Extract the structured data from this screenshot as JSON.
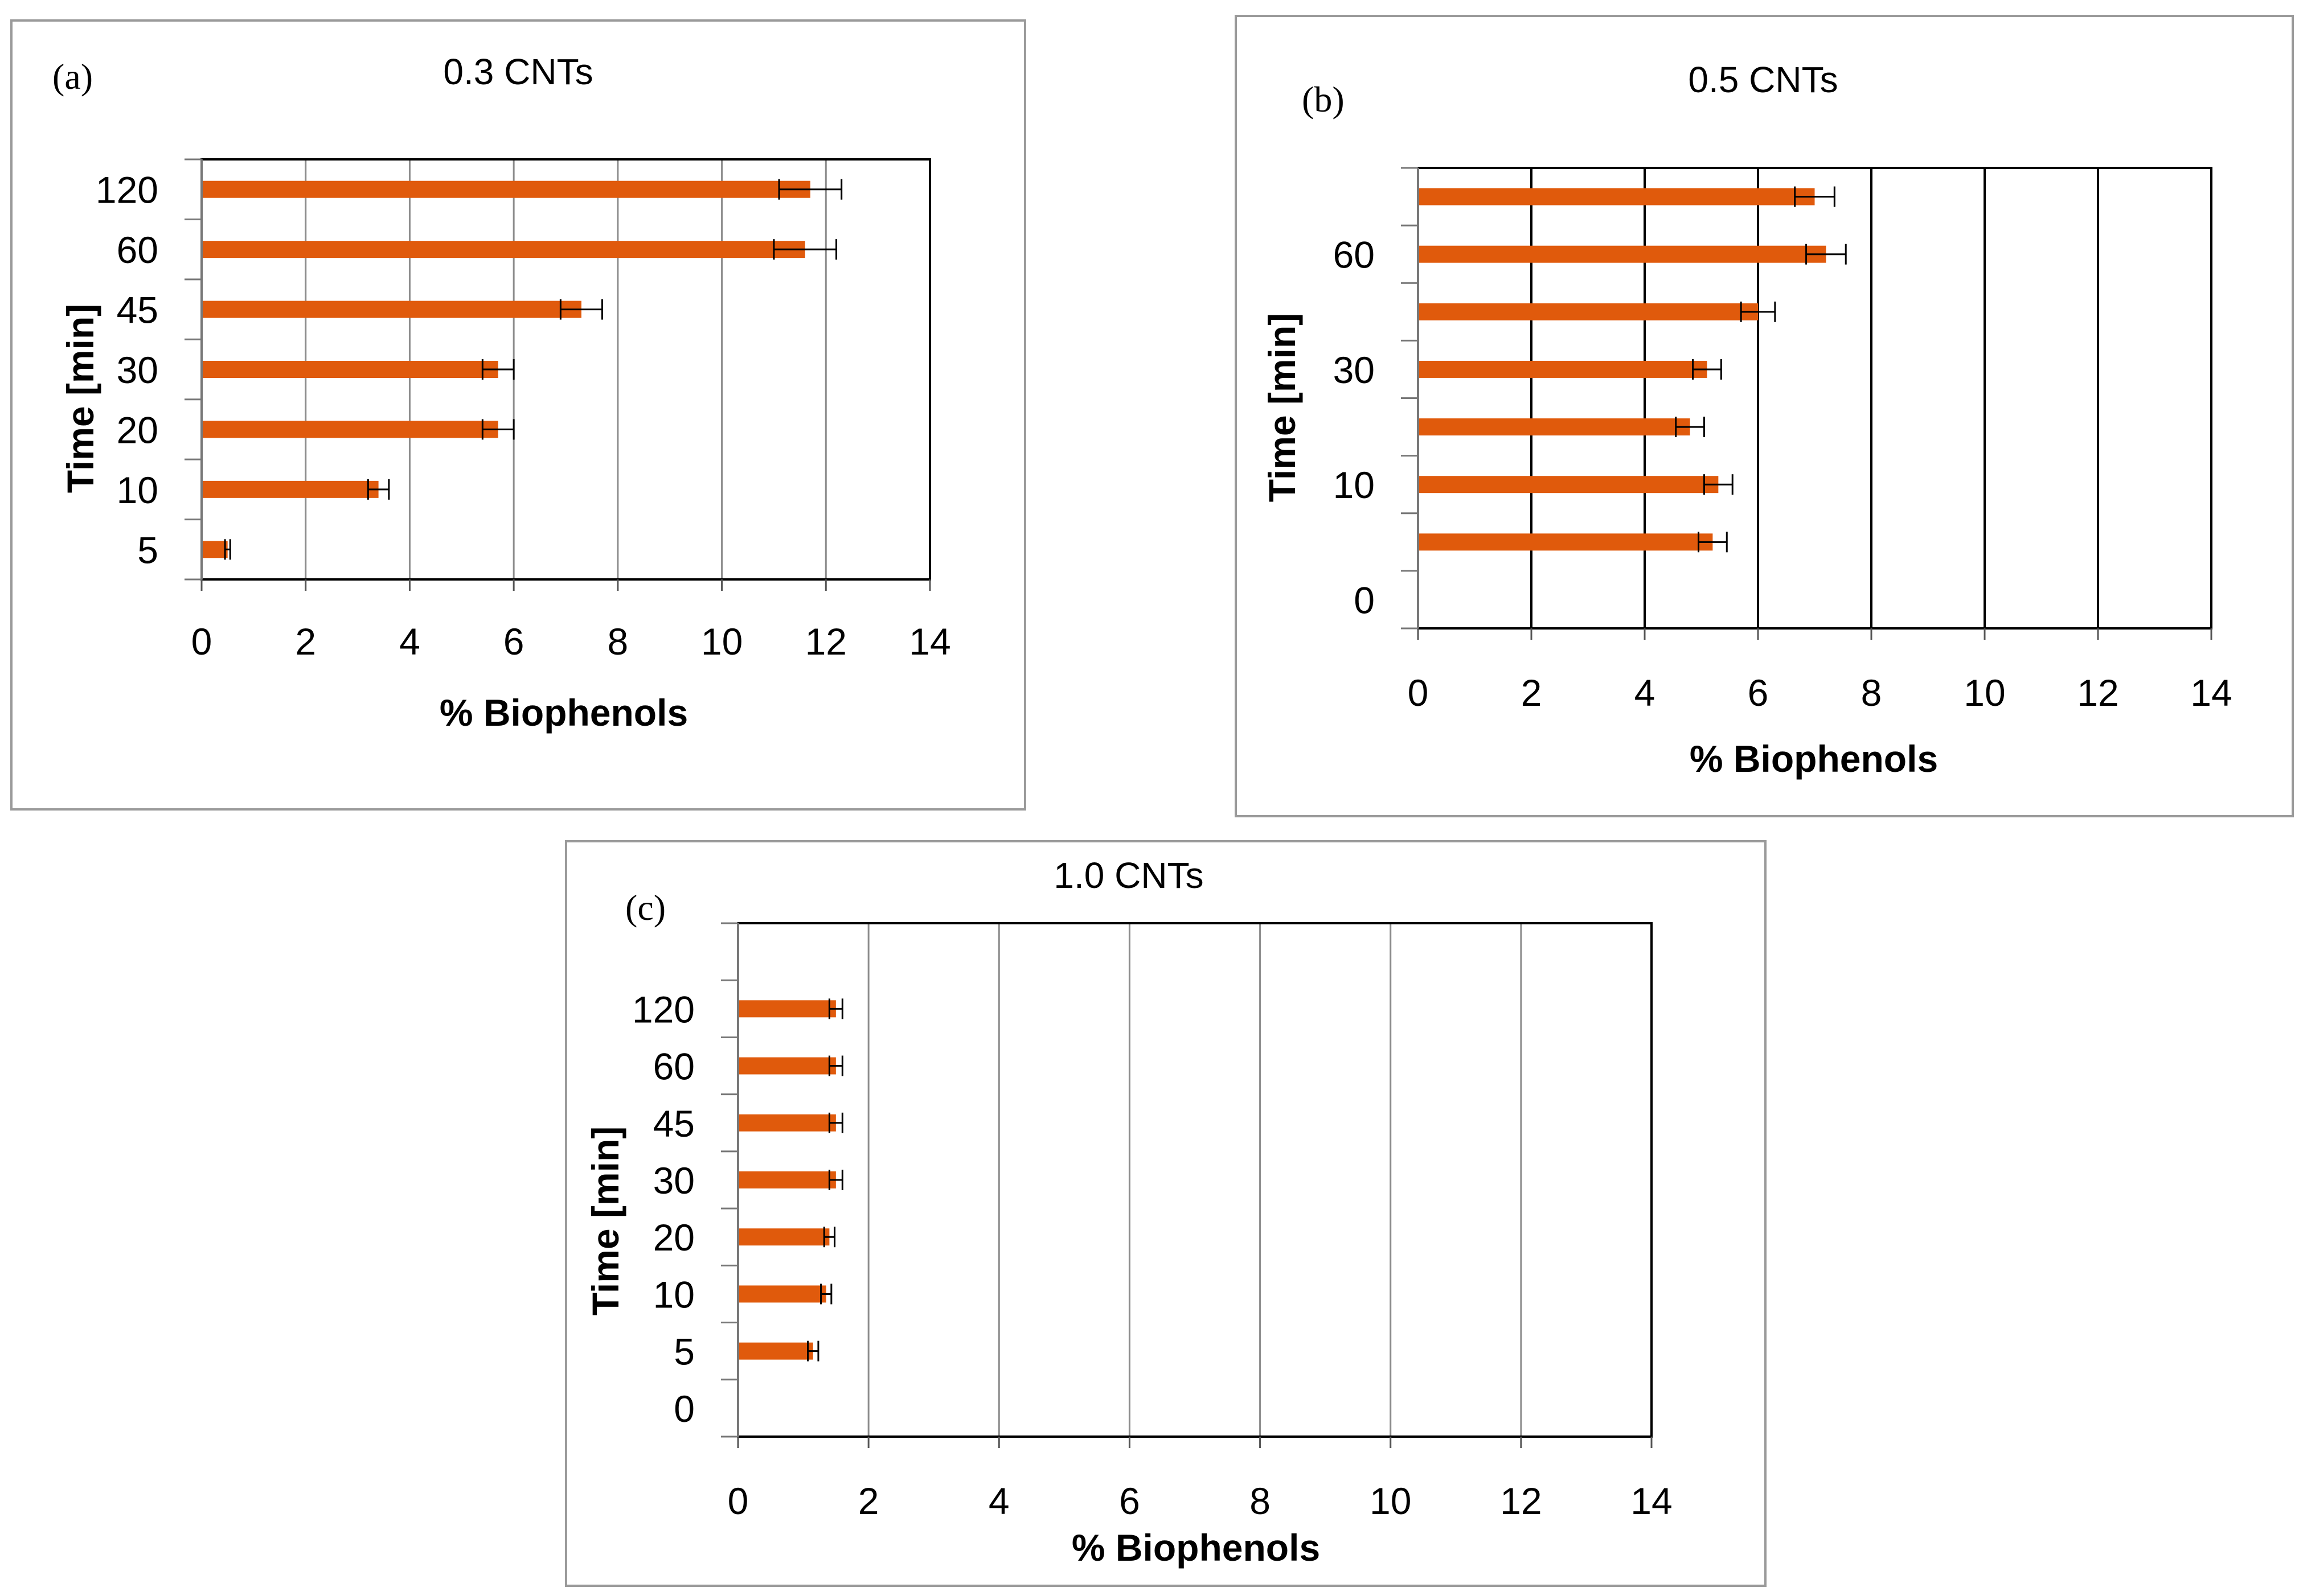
{
  "chart_data": [
    {
      "type": "bar",
      "orientation": "horizontal",
      "panel": "(a)",
      "title": "0.3 CNTs",
      "xlabel": "%  Biophenols",
      "ylabel": "Time [min]",
      "xlim": [
        0,
        14
      ],
      "xticks": [
        "0",
        "2",
        "4",
        "6",
        "8",
        "10",
        "12",
        "14"
      ],
      "categories": [
        "120",
        "60",
        "45",
        "30",
        "20",
        "10",
        "5"
      ],
      "values": [
        11.7,
        11.6,
        7.3,
        5.7,
        5.7,
        3.4,
        0.5
      ],
      "errors": [
        0.6,
        0.6,
        0.4,
        0.3,
        0.3,
        0.2,
        0.05
      ],
      "bar_color": "#e05a0c"
    },
    {
      "type": "bar",
      "orientation": "horizontal",
      "panel": "(b)",
      "title": "0.5 CNTs",
      "xlabel": "% Biophenols",
      "ylabel": "Time [min]",
      "xlim": [
        0,
        14
      ],
      "xticks": [
        "0",
        "2",
        "4",
        "6",
        "8",
        "10",
        "12",
        "14"
      ],
      "categories": [
        "",
        "60",
        "",
        "30",
        "",
        "10",
        ""
      ],
      "tick_labels": [
        "60",
        "30",
        "10",
        "0"
      ],
      "values": [
        7.0,
        7.2,
        6.0,
        5.1,
        4.8,
        5.3,
        5.2
      ],
      "errors": [
        0.35,
        0.35,
        0.3,
        0.25,
        0.25,
        0.25,
        0.25
      ],
      "bar_color": "#e05a0c"
    },
    {
      "type": "bar",
      "orientation": "horizontal",
      "panel": "(c)",
      "title": "1.0 CNTs",
      "xlabel": "% Biophenols",
      "ylabel": "Time [min]",
      "xlim": [
        0,
        14
      ],
      "xticks": [
        "0",
        "2",
        "4",
        "6",
        "8",
        "10",
        "12",
        "14"
      ],
      "categories": [
        "120",
        "60",
        "45",
        "30",
        "20",
        "10",
        "5",
        "0"
      ],
      "values": [
        1.5,
        1.5,
        1.5,
        1.5,
        1.4,
        1.35,
        1.15,
        0
      ],
      "errors": [
        0.1,
        0.1,
        0.1,
        0.1,
        0.08,
        0.08,
        0.08,
        0
      ],
      "bar_color": "#e05a0c"
    }
  ]
}
